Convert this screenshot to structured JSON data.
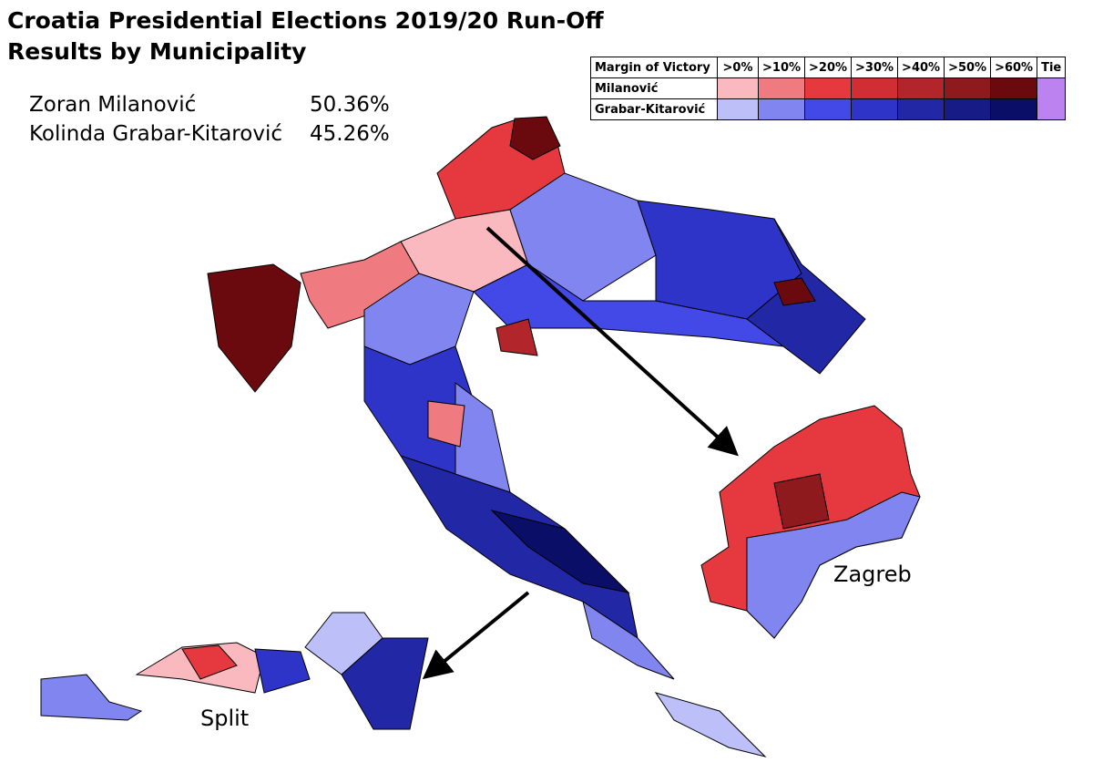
{
  "header": {
    "title": [
      "Croatia Presidential Elections 2019/20 Run-Off",
      "Results by Municipality"
    ]
  },
  "results": [
    {
      "name": "Zoran Milanović",
      "share": "50.36%"
    },
    {
      "name": "Kolinda Grabar-Kitarović",
      "share": "45.26%"
    }
  ],
  "legend": {
    "header": [
      "Margin of Victory",
      ">0%",
      ">10%",
      ">20%",
      ">30%",
      ">40%",
      ">50%",
      ">60%",
      "Tie"
    ],
    "rows": [
      {
        "label": "Milanović",
        "colors": [
          "#f9b9bf",
          "#ef7a7f",
          "#e5393f",
          "#d02e34",
          "#b2252b",
          "#8e1a1e",
          "#6b0a0e"
        ]
      },
      {
        "label": "Grabar-Kitarović",
        "colors": [
          "#bcbff8",
          "#8185ef",
          "#4349e6",
          "#2f34c8",
          "#2227a6",
          "#171b86",
          "#0b0e66"
        ]
      }
    ],
    "tie_color": "#bc82f0"
  },
  "insets": {
    "zagreb": "Zagreb",
    "split": "Split"
  }
}
